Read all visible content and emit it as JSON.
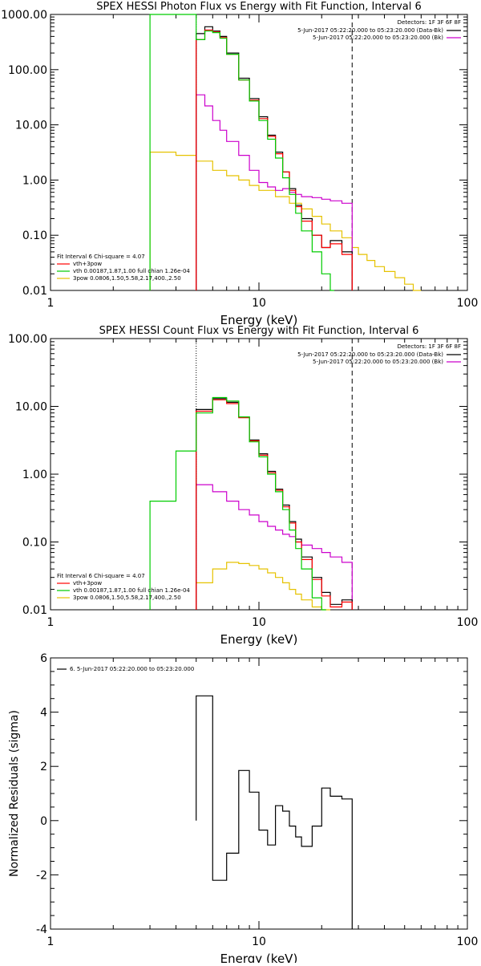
{
  "chart_data": [
    {
      "type": "line",
      "title": "SPEX HESSI Photon Flux vs Energy with Fit Function, Interval 6",
      "xlabel": "Energy (keV)",
      "ylabel": "",
      "xscale": "log",
      "yscale": "log",
      "xlim": [
        1,
        100
      ],
      "ylim": [
        0.01,
        1000
      ],
      "x_tick_labels": [
        "1",
        "10",
        "100"
      ],
      "y_tick_labels": [
        "0.01",
        "0.10",
        "1.00",
        "10.00",
        "100.00",
        "1000.00"
      ],
      "vlines": [
        {
          "x": 5.0,
          "style": "dotted",
          "color": "#cc00cc"
        },
        {
          "x": 28.0,
          "style": "dashed",
          "color": "#000000"
        }
      ],
      "legend_top_right": {
        "header": "Detectors: 1F 3F 6F 8F",
        "items": [
          {
            "label": "5-Jun-2017 05:22:20.000 to 05:23:20.000 (Data-Bk)",
            "color": "#000000"
          },
          {
            "label": "5-Jun-2017 05:22:20.000 to 05:23:20.000 (Bk)",
            "color": "#cc00cc"
          }
        ]
      },
      "legend_bottom_left": {
        "header": "Fit Interval 6   Chi-square = 4.07",
        "items": [
          {
            "label": "vth+3pow",
            "color": "#ff0000"
          },
          {
            "label": "vth 0.00187,1.87,1.00  full chian 1.26e-04",
            "color": "#00cc00"
          },
          {
            "label": "3pow 0.0806,1.50,5.58,2.17,400.,2.50",
            "color": "#e6c200"
          }
        ]
      },
      "edges": [
        5.0,
        5.5,
        6.0,
        6.5,
        7.0,
        8.0,
        9.0,
        10.0,
        11.0,
        12.0,
        13.0,
        14.0,
        15.0,
        16.0,
        18.0,
        20.0,
        22.0,
        25.0,
        28.0
      ],
      "series": [
        {
          "color": "#000000",
          "values": [
            450,
            600,
            500,
            400,
            200,
            70,
            30,
            14,
            6.5,
            3.2,
            1.4,
            0.7,
            0.35,
            0.2,
            0.1,
            0.06,
            0.08,
            0.05
          ]
        },
        {
          "color": "#ff0000",
          "values": [
            350,
            520,
            480,
            380,
            190,
            65,
            28,
            13,
            6.2,
            3.0,
            1.4,
            0.65,
            0.33,
            0.18,
            0.1,
            0.06,
            0.07,
            0.045
          ]
        },
        {
          "color": "#cc00cc",
          "values": [
            35,
            22,
            12,
            8,
            5,
            2.8,
            1.5,
            0.9,
            0.75,
            0.65,
            0.7,
            0.6,
            0.55,
            0.5,
            0.48,
            0.45,
            0.42,
            0.38
          ]
        },
        {
          "color": "#00cc00",
          "edges": [
            3.0,
            4.0,
            5.0,
            5.5,
            6.0,
            6.5,
            7.0,
            8.0,
            9.0,
            10.0,
            11.0,
            12.0,
            13.0,
            14.0,
            15.0,
            16.0,
            18.0,
            20.0,
            22.0,
            23.0
          ],
          "values": [
            1000,
            1000,
            350,
            500,
            470,
            370,
            190,
            65,
            27,
            12,
            5.5,
            2.5,
            1.1,
            0.55,
            0.25,
            0.12,
            0.05,
            0.02,
            0.008
          ]
        },
        {
          "color": "#e6c200",
          "edges": [
            3.0,
            4.0,
            5.0,
            6.0,
            7.0,
            8.0,
            9.0,
            10.0,
            12.0,
            14.0,
            16.0,
            18.0,
            20.0,
            22.0,
            25.0,
            28.0,
            30.0,
            33.0,
            36.0,
            40.0,
            45.0,
            50.0,
            55.0,
            60.0
          ],
          "values": [
            3.2,
            2.8,
            2.2,
            1.5,
            1.2,
            1.0,
            0.8,
            0.65,
            0.5,
            0.38,
            0.3,
            0.22,
            0.16,
            0.12,
            0.09,
            0.06,
            0.045,
            0.035,
            0.027,
            0.022,
            0.017,
            0.013,
            0.01
          ]
        }
      ]
    },
    {
      "type": "line",
      "title": "SPEX HESSI Count Flux vs Energy with Fit Function, Interval 6",
      "xlabel": "Energy (keV)",
      "ylabel": "",
      "xscale": "log",
      "yscale": "log",
      "xlim": [
        1,
        100
      ],
      "ylim": [
        0.01,
        100
      ],
      "x_tick_labels": [
        "1",
        "10",
        "100"
      ],
      "y_tick_labels": [
        "0.01",
        "0.10",
        "1.00",
        "10.00",
        "100.00"
      ],
      "vlines": [
        {
          "x": 5.0,
          "style": "dotted",
          "color": "#000000"
        },
        {
          "x": 28.0,
          "style": "dashed",
          "color": "#000000"
        }
      ],
      "legend_top_right": {
        "header": "Detectors: 1F 3F 6F 8F",
        "items": [
          {
            "label": "5-Jun-2017 05:22:20.000 to 05:23:20.000 (Data-Bk)",
            "color": "#000000"
          },
          {
            "label": "5-Jun-2017 05:22:20.000 to 05:23:20.000 (Bk)",
            "color": "#cc00cc"
          }
        ]
      },
      "legend_bottom_left": {
        "header": "Fit Interval 6   Chi-square = 4.07",
        "items": [
          {
            "label": "vth+3pow",
            "color": "#ff0000"
          },
          {
            "label": "vth 0.00187,1.87,1.00  full chian 1.26e-04",
            "color": "#00cc00"
          },
          {
            "label": "3pow 0.0806,1.50,5.58,2.17,400.,2.50",
            "color": "#e6c200"
          }
        ]
      },
      "edges": [
        5.0,
        6.0,
        7.0,
        8.0,
        9.0,
        10.0,
        11.0,
        12.0,
        13.0,
        14.0,
        15.0,
        16.0,
        18.0,
        20.0,
        22.0,
        25.0,
        28.0
      ],
      "series": [
        {
          "color": "#000000",
          "values": [
            9.0,
            13.0,
            11.5,
            7.0,
            3.2,
            2.0,
            1.1,
            0.6,
            0.35,
            0.2,
            0.11,
            0.06,
            0.03,
            0.018,
            0.012,
            0.014
          ]
        },
        {
          "color": "#ff0000",
          "values": [
            8.5,
            12.5,
            11.0,
            6.8,
            3.1,
            1.9,
            1.05,
            0.58,
            0.33,
            0.19,
            0.1,
            0.055,
            0.028,
            0.016,
            0.011,
            0.013
          ]
        },
        {
          "color": "#cc00cc",
          "values": [
            0.7,
            0.55,
            0.4,
            0.3,
            0.25,
            0.2,
            0.17,
            0.15,
            0.13,
            0.12,
            0.1,
            0.09,
            0.08,
            0.07,
            0.06,
            0.05
          ]
        },
        {
          "color": "#00cc00",
          "edges": [
            3.0,
            4.0,
            5.0,
            6.0,
            7.0,
            8.0,
            9.0,
            10.0,
            11.0,
            12.0,
            13.0,
            14.0,
            15.0,
            16.0,
            18.0,
            20.0,
            21.0
          ],
          "values": [
            0.4,
            2.2,
            8.0,
            13.5,
            12.0,
            7.0,
            3.0,
            1.8,
            1.0,
            0.55,
            0.3,
            0.15,
            0.08,
            0.04,
            0.015,
            0.008
          ]
        },
        {
          "color": "#e6c200",
          "edges": [
            5.0,
            6.0,
            7.0,
            8.0,
            9.0,
            10.0,
            11.0,
            12.0,
            13.0,
            14.0,
            15.0,
            16.0,
            18.0,
            20.0,
            22.0
          ],
          "values": [
            0.025,
            0.04,
            0.05,
            0.048,
            0.045,
            0.04,
            0.035,
            0.03,
            0.025,
            0.02,
            0.017,
            0.014,
            0.011,
            0.009
          ]
        }
      ]
    },
    {
      "type": "line",
      "title": "",
      "xlabel": "Energy (keV)",
      "ylabel": "Normalized Residuals (sigma)",
      "xscale": "log",
      "yscale": "linear",
      "xlim": [
        1,
        100
      ],
      "ylim": [
        -4,
        6
      ],
      "x_tick_labels": [
        "1",
        "10",
        "100"
      ],
      "y_tick_labels": [
        "-4",
        "-2",
        "0",
        "2",
        "4",
        "6"
      ],
      "vlines": [],
      "legend_top_left": {
        "items": [
          {
            "label": "6.  5-Jun-2017 05:22:20.000 to 05:23:20.000",
            "color": "#000000"
          }
        ]
      },
      "edges": [
        5.0,
        6.0,
        7.0,
        8.0,
        9.0,
        10.0,
        11.0,
        12.0,
        13.0,
        14.0,
        15.0,
        16.0,
        18.0,
        20.0,
        22.0,
        25.0,
        28.0
      ],
      "series": [
        {
          "color": "#000000",
          "values": [
            4.6,
            -2.2,
            -1.2,
            1.85,
            1.05,
            -0.35,
            -0.9,
            0.55,
            0.35,
            -0.2,
            -0.6,
            -0.95,
            -0.2,
            1.2,
            0.9,
            0.8
          ]
        }
      ]
    }
  ]
}
